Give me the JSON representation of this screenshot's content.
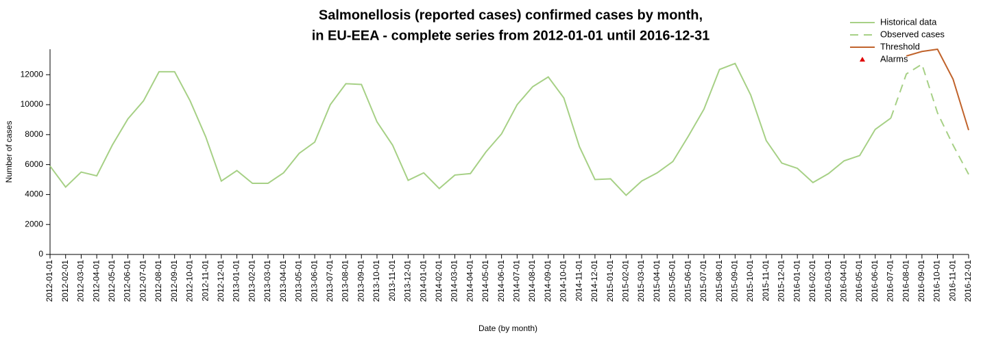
{
  "chart_data": {
    "type": "line",
    "title": [
      "Salmonellosis (reported cases) confirmed cases by month,",
      "in EU-EEA - complete series from 2012-01-01 until 2016-12-31"
    ],
    "x_label": "Date (by month)",
    "y_label": "Number of cases",
    "categories": [
      "2012-01-01",
      "2012-02-01",
      "2012-03-01",
      "2012-04-01",
      "2012-05-01",
      "2012-06-01",
      "2012-07-01",
      "2012-08-01",
      "2012-09-01",
      "2012-10-01",
      "2012-11-01",
      "2012-12-01",
      "2013-01-01",
      "2013-02-01",
      "2013-03-01",
      "2013-04-01",
      "2013-05-01",
      "2013-06-01",
      "2013-07-01",
      "2013-08-01",
      "2013-09-01",
      "2013-10-01",
      "2013-11-01",
      "2013-12-01",
      "2014-01-01",
      "2014-02-01",
      "2014-03-01",
      "2014-04-01",
      "2014-05-01",
      "2014-06-01",
      "2014-07-01",
      "2014-08-01",
      "2014-09-01",
      "2014-10-01",
      "2014-11-01",
      "2014-12-01",
      "2015-01-01",
      "2015-02-01",
      "2015-03-01",
      "2015-04-01",
      "2015-05-01",
      "2015-06-01",
      "2015-07-01",
      "2015-08-01",
      "2015-09-01",
      "2015-10-01",
      "2015-11-01",
      "2015-12-01",
      "2016-01-01",
      "2016-02-01",
      "2016-03-01",
      "2016-04-01",
      "2016-05-01",
      "2016-06-01",
      "2016-07-01",
      "2016-08-01",
      "2016-09-01",
      "2016-10-01",
      "2016-11-01",
      "2016-12-01"
    ],
    "series": [
      {
        "name": "Historical data",
        "color": "#a6d085",
        "dash": false,
        "values": [
          5900,
          4500,
          5500,
          5250,
          7300,
          9050,
          10250,
          12200,
          12200,
          10250,
          7850,
          4900,
          5600,
          4750,
          4750,
          5450,
          6750,
          7500,
          10000,
          11400,
          11350,
          8850,
          7300,
          4950,
          5450,
          4400,
          5300,
          5400,
          6850,
          8050,
          10000,
          11200,
          11850,
          10450,
          7200,
          5000,
          5050,
          3950,
          4900,
          5450,
          6200,
          7900,
          9700,
          12350,
          12750,
          10650,
          7600,
          6100,
          5750,
          4800,
          5400,
          6250,
          6600,
          8350,
          9100,
          null,
          null,
          null,
          null,
          null
        ]
      },
      {
        "name": "Observed cases",
        "color": "#a6d085",
        "dash": true,
        "values": [
          null,
          null,
          null,
          null,
          null,
          null,
          null,
          null,
          null,
          null,
          null,
          null,
          null,
          null,
          null,
          null,
          null,
          null,
          null,
          null,
          null,
          null,
          null,
          null,
          null,
          null,
          null,
          null,
          null,
          null,
          null,
          null,
          null,
          null,
          null,
          null,
          null,
          null,
          null,
          null,
          null,
          null,
          null,
          null,
          null,
          null,
          null,
          null,
          null,
          null,
          null,
          null,
          null,
          null,
          9100,
          12050,
          12700,
          9450,
          7300,
          5350
        ]
      },
      {
        "name": "Threshold",
        "color": "#c0622a",
        "dash": false,
        "values": [
          null,
          null,
          null,
          null,
          null,
          null,
          null,
          null,
          null,
          null,
          null,
          null,
          null,
          null,
          null,
          null,
          null,
          null,
          null,
          null,
          null,
          null,
          null,
          null,
          null,
          null,
          null,
          null,
          null,
          null,
          null,
          null,
          null,
          null,
          null,
          null,
          null,
          null,
          null,
          null,
          null,
          null,
          null,
          null,
          null,
          null,
          null,
          null,
          null,
          null,
          null,
          null,
          null,
          null,
          null,
          13250,
          13550,
          13700,
          11700,
          8300
        ]
      },
      {
        "name": "Alarms",
        "color": "#e00000",
        "marker": "triangle",
        "values": [
          null,
          null,
          null,
          null,
          null,
          null,
          null,
          null,
          null,
          null,
          null,
          null,
          null,
          null,
          null,
          null,
          null,
          null,
          null,
          null,
          null,
          null,
          null,
          null,
          null,
          null,
          null,
          null,
          null,
          null,
          null,
          null,
          null,
          null,
          null,
          null,
          null,
          null,
          null,
          null,
          null,
          null,
          null,
          null,
          null,
          null,
          null,
          null,
          null,
          null,
          null,
          null,
          null,
          null,
          null,
          null,
          null,
          null,
          null,
          null
        ]
      }
    ],
    "ylim": [
      0,
      13700
    ],
    "yticks": [
      0,
      2000,
      4000,
      6000,
      8000,
      10000,
      12000
    ],
    "legend": "top-right"
  }
}
